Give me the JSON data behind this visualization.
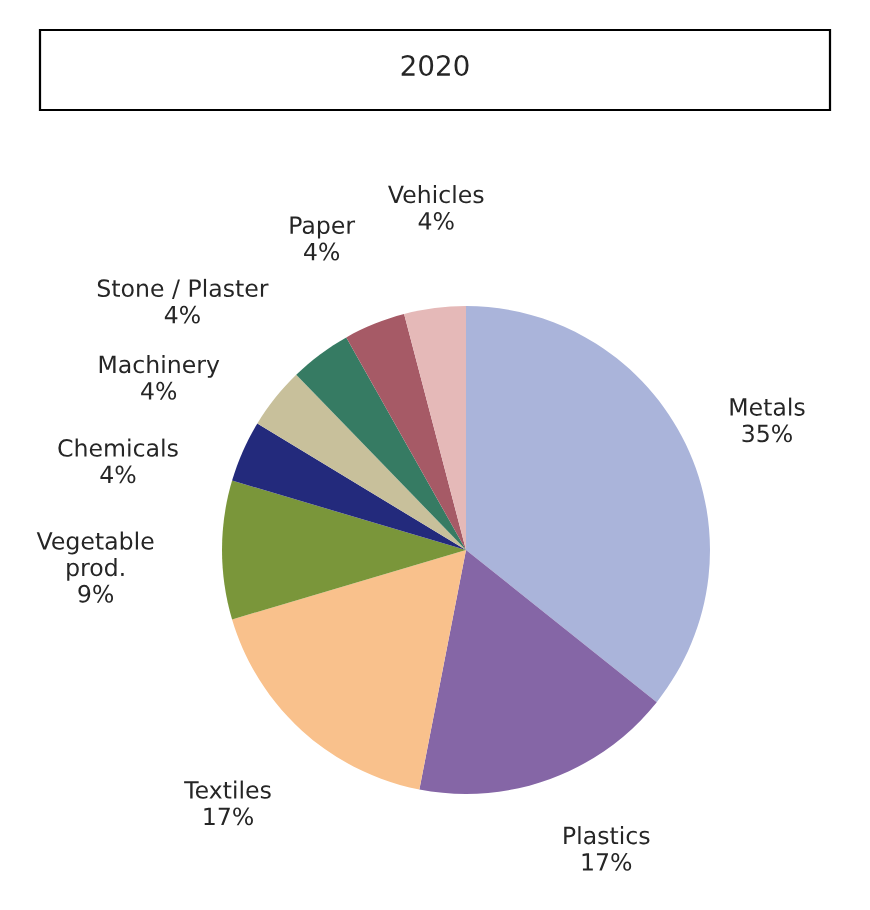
{
  "chart_data": {
    "type": "pie",
    "title": "2020",
    "categories": [
      "Metals",
      "Plastics",
      "Textiles",
      "Vegetable\nprod.",
      "Chemicals",
      "Machinery",
      "Stone / Plaster",
      "Paper",
      "Vehicles"
    ],
    "values": [
      35,
      17,
      17,
      9,
      4,
      4,
      4,
      4,
      4
    ],
    "value_labels": [
      "35%",
      "17%",
      "17%",
      "9%",
      "4%",
      "4%",
      "4%",
      "4%",
      "4%"
    ],
    "colors": [
      "#aab4da",
      "#8566a6",
      "#f9c18c",
      "#7a963a",
      "#232a7c",
      "#c8c09b",
      "#367b63",
      "#a65a66",
      "#e5b9b8"
    ]
  }
}
